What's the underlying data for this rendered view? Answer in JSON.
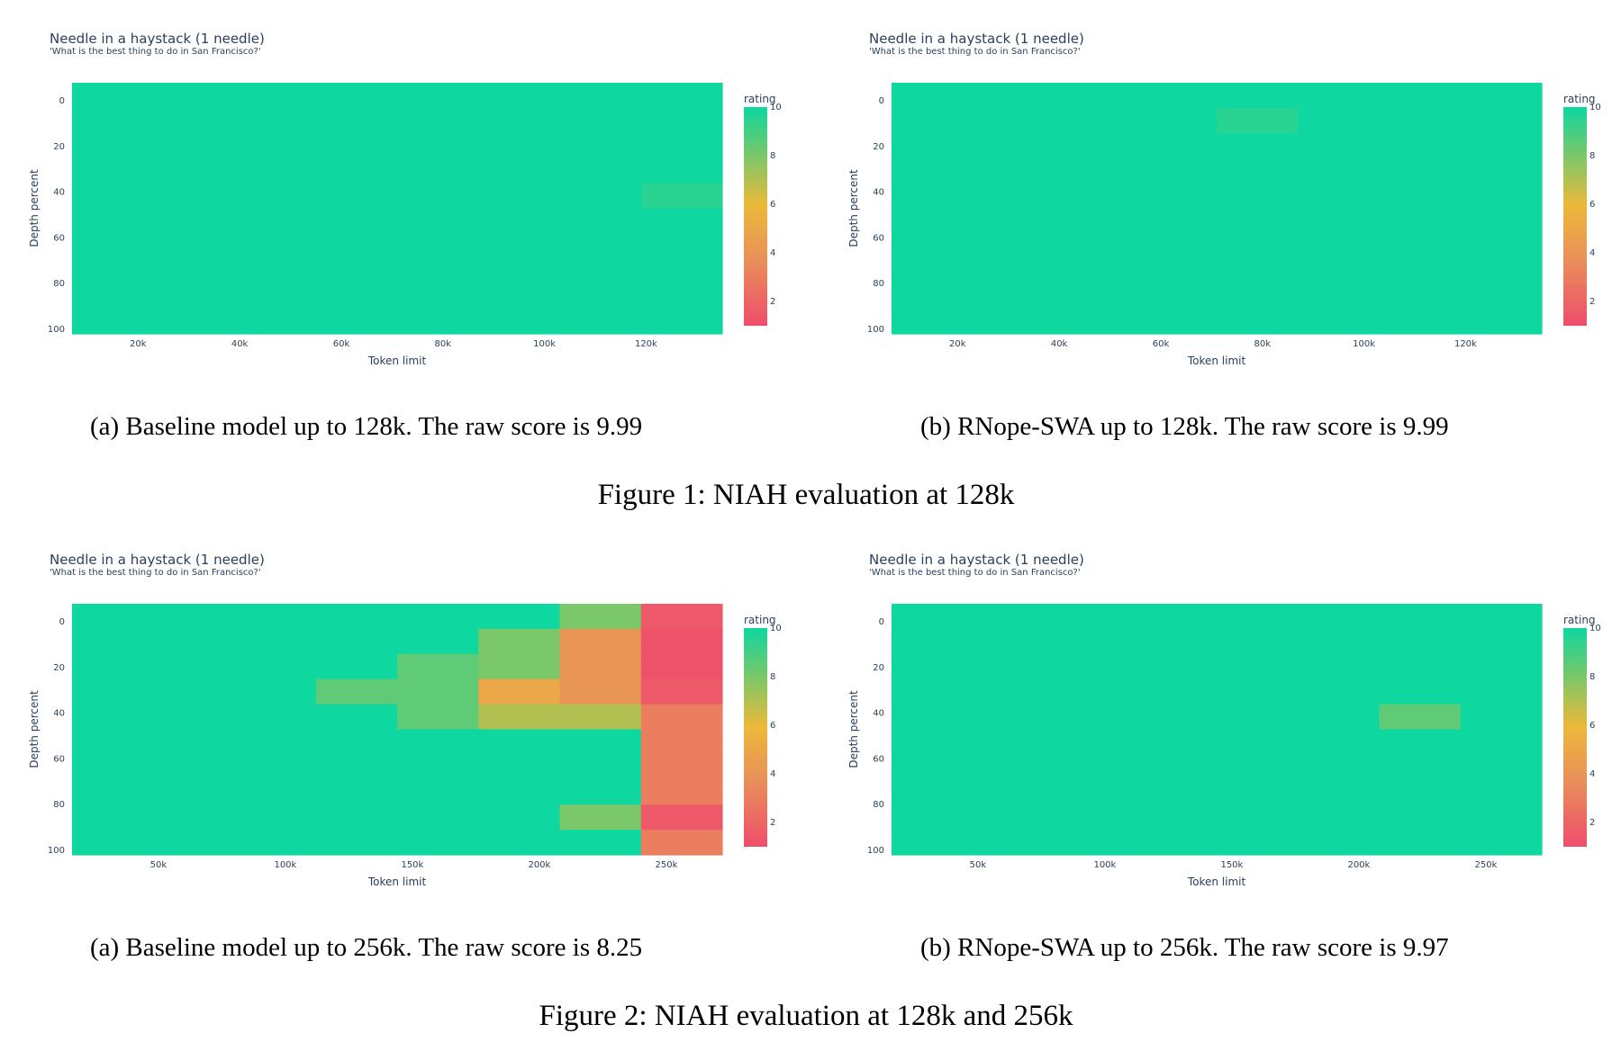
{
  "colorscale": {
    "title": "rating",
    "min": 1,
    "max": 10,
    "ticks": [
      2,
      4,
      6,
      8,
      10
    ],
    "stops": [
      {
        "t": 0.0,
        "color": "#ee4d6b"
      },
      {
        "t": 0.3,
        "color": "#e98f5a"
      },
      {
        "t": 0.55,
        "color": "#ecb93a"
      },
      {
        "t": 0.8,
        "color": "#6fc96e"
      },
      {
        "t": 1.0,
        "color": "#0ed79f"
      }
    ]
  },
  "figures": [
    {
      "caption": "Figure 1: NIAH evaluation at 128k"
    },
    {
      "caption": "Figure 2: NIAH evaluation at 128k and 256k"
    }
  ],
  "chart_data": [
    {
      "type": "heatmap",
      "title": "Needle in a haystack (1 needle)",
      "subtitle": "'What is the best thing to do in San Francisco?'",
      "caption": "(a) Baseline model up to 128k. The raw score is 9.99",
      "xlabel": "Token limit",
      "ylabel": "Depth percent",
      "xlim": [
        7000,
        135000
      ],
      "x_ticks": [
        20000,
        40000,
        60000,
        80000,
        100000,
        120000
      ],
      "x_tick_labels": [
        "20k",
        "40k",
        "60k",
        "80k",
        "100k",
        "120k"
      ],
      "ylim": [
        0,
        100
      ],
      "y_ticks": [
        0,
        20,
        40,
        60,
        80,
        100
      ],
      "x": [
        16000,
        32000,
        48000,
        64000,
        80000,
        96000,
        112000,
        128000
      ],
      "y": [
        0,
        11,
        22,
        33,
        44,
        56,
        67,
        78,
        89,
        100
      ],
      "z": [
        [
          10,
          10,
          10,
          10,
          10,
          10,
          10,
          10
        ],
        [
          10,
          10,
          10,
          10,
          10,
          10,
          10,
          10
        ],
        [
          10,
          10,
          10,
          10,
          10,
          10,
          10,
          10
        ],
        [
          10,
          10,
          10,
          10,
          10,
          10,
          10,
          10
        ],
        [
          10,
          10,
          10,
          10,
          10,
          10,
          10,
          9.5
        ],
        [
          10,
          10,
          10,
          10,
          10,
          10,
          10,
          10
        ],
        [
          10,
          10,
          10,
          10,
          10,
          10,
          10,
          10
        ],
        [
          10,
          10,
          10,
          10,
          10,
          10,
          10,
          10
        ],
        [
          10,
          10,
          10,
          10,
          10,
          10,
          10,
          10
        ],
        [
          10,
          10,
          10,
          10,
          10,
          10,
          10,
          10
        ]
      ]
    },
    {
      "type": "heatmap",
      "title": "Needle in a haystack (1 needle)",
      "subtitle": "'What is the best thing to do in San Francisco?'",
      "caption": "(b) RNope-SWA up to 128k. The raw score is 9.99",
      "xlabel": "Token limit",
      "ylabel": "Depth percent",
      "xlim": [
        7000,
        135000
      ],
      "x_ticks": [
        20000,
        40000,
        60000,
        80000,
        100000,
        120000
      ],
      "x_tick_labels": [
        "20k",
        "40k",
        "60k",
        "80k",
        "100k",
        "120k"
      ],
      "ylim": [
        0,
        100
      ],
      "y_ticks": [
        0,
        20,
        40,
        60,
        80,
        100
      ],
      "x": [
        16000,
        32000,
        48000,
        64000,
        80000,
        96000,
        112000,
        128000
      ],
      "y": [
        0,
        11,
        22,
        33,
        44,
        56,
        67,
        78,
        89,
        100
      ],
      "z": [
        [
          10,
          10,
          10,
          10,
          10,
          10,
          10,
          10
        ],
        [
          10,
          10,
          10,
          10,
          9.5,
          10,
          10,
          10
        ],
        [
          10,
          10,
          10,
          10,
          10,
          10,
          10,
          10
        ],
        [
          10,
          10,
          10,
          10,
          10,
          10,
          10,
          10
        ],
        [
          10,
          10,
          10,
          10,
          10,
          10,
          10,
          10
        ],
        [
          10,
          10,
          10,
          10,
          10,
          10,
          10,
          10
        ],
        [
          10,
          10,
          10,
          10,
          10,
          10,
          10,
          10
        ],
        [
          10,
          10,
          10,
          10,
          10,
          10,
          10,
          10
        ],
        [
          10,
          10,
          10,
          10,
          10,
          10,
          10,
          10
        ],
        [
          10,
          10,
          10,
          10,
          10,
          10,
          10,
          10
        ]
      ]
    },
    {
      "type": "heatmap",
      "title": "Needle in a haystack (1 needle)",
      "subtitle": "'What is the best thing to do in San Francisco?'",
      "caption": "(a) Baseline model up to 256k. The raw score is 8.25",
      "xlabel": "Token limit",
      "ylabel": "Depth percent",
      "xlim": [
        16000,
        272000
      ],
      "x_ticks": [
        50000,
        100000,
        150000,
        200000,
        250000
      ],
      "x_tick_labels": [
        "50k",
        "100k",
        "150k",
        "200k",
        "250k"
      ],
      "ylim": [
        0,
        100
      ],
      "y_ticks": [
        0,
        20,
        40,
        60,
        80,
        100
      ],
      "x": [
        32000,
        64000,
        96000,
        128000,
        160000,
        192000,
        224000,
        256000
      ],
      "y": [
        0,
        11,
        22,
        33,
        44,
        56,
        67,
        78,
        89,
        100
      ],
      "z": [
        [
          10,
          10,
          10,
          10,
          10,
          10,
          8,
          1.5
        ],
        [
          10,
          10,
          10,
          10,
          10,
          8,
          4,
          1.2
        ],
        [
          10,
          10,
          10,
          10,
          8.5,
          8,
          4,
          1.2
        ],
        [
          10,
          10,
          10,
          8.5,
          8.5,
          5,
          4,
          1.5
        ],
        [
          10,
          10,
          10,
          10,
          8.5,
          7,
          7,
          3
        ],
        [
          10,
          10,
          10,
          10,
          10,
          10,
          10,
          3
        ],
        [
          10,
          10,
          10,
          10,
          10,
          10,
          10,
          3
        ],
        [
          10,
          10,
          10,
          10,
          10,
          10,
          10,
          3
        ],
        [
          10,
          10,
          10,
          10,
          10,
          10,
          8,
          1.5
        ],
        [
          10,
          10,
          10,
          10,
          10,
          10,
          10,
          3
        ]
      ]
    },
    {
      "type": "heatmap",
      "title": "Needle in a haystack (1 needle)",
      "subtitle": "'What is the best thing to do in San Francisco?'",
      "caption": "(b) RNope-SWA up to 256k. The raw score is 9.97",
      "xlabel": "Token limit",
      "ylabel": "Depth percent",
      "xlim": [
        16000,
        272000
      ],
      "x_ticks": [
        50000,
        100000,
        150000,
        200000,
        250000
      ],
      "x_tick_labels": [
        "50k",
        "100k",
        "150k",
        "200k",
        "250k"
      ],
      "ylim": [
        0,
        100
      ],
      "y_ticks": [
        0,
        20,
        40,
        60,
        80,
        100
      ],
      "x": [
        32000,
        64000,
        96000,
        128000,
        160000,
        192000,
        224000,
        256000
      ],
      "y": [
        0,
        11,
        22,
        33,
        44,
        56,
        67,
        78,
        89,
        100
      ],
      "z": [
        [
          10,
          10,
          10,
          10,
          10,
          10,
          10,
          10
        ],
        [
          10,
          10,
          10,
          10,
          10,
          10,
          10,
          10
        ],
        [
          10,
          10,
          10,
          10,
          10,
          10,
          10,
          10
        ],
        [
          10,
          10,
          10,
          10,
          10,
          10,
          10,
          10
        ],
        [
          10,
          10,
          10,
          10,
          10,
          10,
          8.5,
          10
        ],
        [
          10,
          10,
          10,
          10,
          10,
          10,
          10,
          10
        ],
        [
          10,
          10,
          10,
          10,
          10,
          10,
          10,
          10
        ],
        [
          10,
          10,
          10,
          10,
          10,
          10,
          10,
          10
        ],
        [
          10,
          10,
          10,
          10,
          10,
          10,
          10,
          10
        ],
        [
          10,
          10,
          10,
          10,
          10,
          10,
          10,
          10
        ]
      ]
    }
  ]
}
